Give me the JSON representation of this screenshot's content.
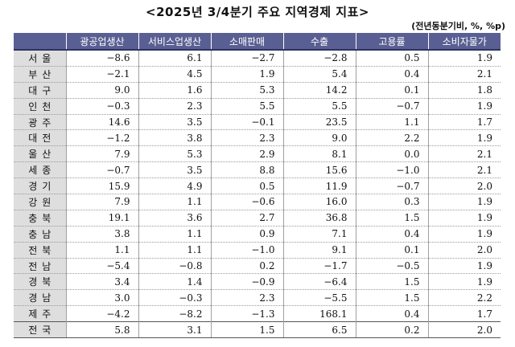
{
  "title": "<2025년 3/4분기 주요 지역경제 지표>",
  "unit": "(전년동분기비, %, %p)",
  "columns": [
    "",
    "광공업생산",
    "서비스업생산",
    "소매판매",
    "수출",
    "고용률",
    "소비자물가"
  ],
  "rows": [
    {
      "region": "서울",
      "values": [
        "−8.6",
        "6.1",
        "−2.7",
        "−2.8",
        "0.5",
        "1.9"
      ]
    },
    {
      "region": "부산",
      "values": [
        "−2.1",
        "4.5",
        "1.9",
        "5.4",
        "0.4",
        "2.1"
      ]
    },
    {
      "region": "대구",
      "values": [
        "9.0",
        "1.6",
        "5.3",
        "14.2",
        "0.1",
        "1.8"
      ]
    },
    {
      "region": "인천",
      "values": [
        "−0.3",
        "2.3",
        "5.5",
        "5.5",
        "−0.7",
        "1.9"
      ]
    },
    {
      "region": "광주",
      "values": [
        "14.6",
        "3.5",
        "−0.1",
        "23.5",
        "1.1",
        "1.7"
      ]
    },
    {
      "region": "대전",
      "values": [
        "−1.2",
        "3.8",
        "2.3",
        "9.0",
        "2.2",
        "1.9"
      ]
    },
    {
      "region": "울산",
      "values": [
        "7.9",
        "5.3",
        "2.9",
        "8.1",
        "0.0",
        "2.1"
      ]
    },
    {
      "region": "세종",
      "values": [
        "−0.7",
        "3.5",
        "8.8",
        "15.6",
        "−1.0",
        "2.1"
      ]
    },
    {
      "region": "경기",
      "values": [
        "15.9",
        "4.9",
        "0.5",
        "11.9",
        "−0.7",
        "2.0"
      ]
    },
    {
      "region": "강원",
      "values": [
        "7.9",
        "1.1",
        "−0.6",
        "16.0",
        "0.3",
        "1.9"
      ]
    },
    {
      "region": "충북",
      "values": [
        "19.1",
        "3.6",
        "2.7",
        "36.8",
        "1.5",
        "1.9"
      ]
    },
    {
      "region": "충남",
      "values": [
        "3.8",
        "1.1",
        "0.9",
        "7.1",
        "0.4",
        "1.9"
      ]
    },
    {
      "region": "전북",
      "values": [
        "1.1",
        "1.1",
        "−1.0",
        "9.1",
        "0.1",
        "2.0"
      ]
    },
    {
      "region": "전남",
      "values": [
        "−5.4",
        "−0.8",
        "0.2",
        "−1.7",
        "−0.5",
        "1.9"
      ]
    },
    {
      "region": "경북",
      "values": [
        "3.4",
        "1.4",
        "−0.9",
        "−6.4",
        "1.5",
        "1.9"
      ]
    },
    {
      "region": "경남",
      "values": [
        "3.0",
        "−0.3",
        "2.3",
        "−5.5",
        "1.5",
        "2.2"
      ]
    },
    {
      "region": "제주",
      "values": [
        "−4.2",
        "−8.2",
        "−1.3",
        "168.1",
        "0.4",
        "1.7"
      ]
    }
  ],
  "total": {
    "region": "전국",
    "values": [
      "5.8",
      "3.1",
      "1.5",
      "6.5",
      "0.2",
      "2.0"
    ]
  }
}
